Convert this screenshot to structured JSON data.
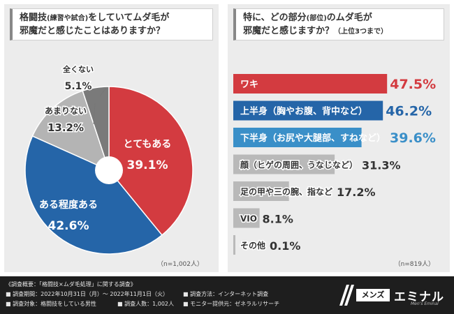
{
  "left_question": {
    "line1_a": "格闘技",
    "line1_b": "(練習や試合)",
    "line1_c": "をしていてムダ毛が",
    "line2": "邪魔だと感じたことはありますか？"
  },
  "right_question": {
    "line1_a": "特に、どの部分",
    "line1_b": "(部位)",
    "line1_c": "のムダ毛が",
    "line2_a": "邪魔だと感じますか？",
    "line2_b": "（上位3つまで）"
  },
  "left_n": "（n=1,002人）",
  "right_n": "（n=819人）",
  "chart_data": [
    {
      "type": "pie",
      "title": "格闘技(練習や試合)をしていてムダ毛が邪魔だと感じたことはありますか？",
      "slices": [
        {
          "label": "とてもある",
          "value": 39.1,
          "display": "39.1%",
          "color": "#d33b40"
        },
        {
          "label": "ある程度ある",
          "value": 42.6,
          "display": "42.6%",
          "color": "#2565a8"
        },
        {
          "label": "あまりない",
          "value": 13.2,
          "display": "13.2%",
          "color": "#b4b4b4"
        },
        {
          "label": "全くない",
          "value": 5.1,
          "display": "5.1%",
          "color": "#7a7a7a"
        }
      ]
    },
    {
      "type": "bar",
      "orientation": "horizontal",
      "title": "特に、どの部分(部位)のムダ毛が邪魔だと感じますか？（上位3つまで）",
      "xlim": [
        0,
        55
      ],
      "categories": [
        "ワキ",
        "上半身（胸やお腹、背中など）",
        "下半身（お尻や大腿部、すねなど）",
        "顔（ヒゲの周囲、うなじなど）",
        "足の甲や三の腕、指など",
        "VIO",
        "その他"
      ],
      "values": [
        47.5,
        46.2,
        39.6,
        31.3,
        17.2,
        8.1,
        0.1
      ],
      "displays": [
        "47.5%",
        "46.2%",
        "39.6%",
        "31.3%",
        "17.2%",
        "8.1%",
        "0.1%"
      ],
      "colors": [
        "#d33b40",
        "#2565a8",
        "#3a8fc8",
        "#b9b9b9",
        "#b9b9b9",
        "#b9b9b9",
        "#b9b9b9"
      ]
    }
  ],
  "footer": {
    "heading": "《調査概要：「格闘技×ムダ毛処理」に関する調査》",
    "period": "■ 調査期間：2022年10月31日（月）～ 2022年11月1日（火）",
    "method": "■ 調査方法：インターネット調査",
    "subject": "■ 調査対象：格闘技をしている男性",
    "count": "■ 調査人数：1,002人",
    "provider": "■ モニター提供元：ゼネラルリサーチ"
  },
  "logo": {
    "mens": "メンズ",
    "name": "エミナル",
    "sub": "Men's Eminal"
  }
}
